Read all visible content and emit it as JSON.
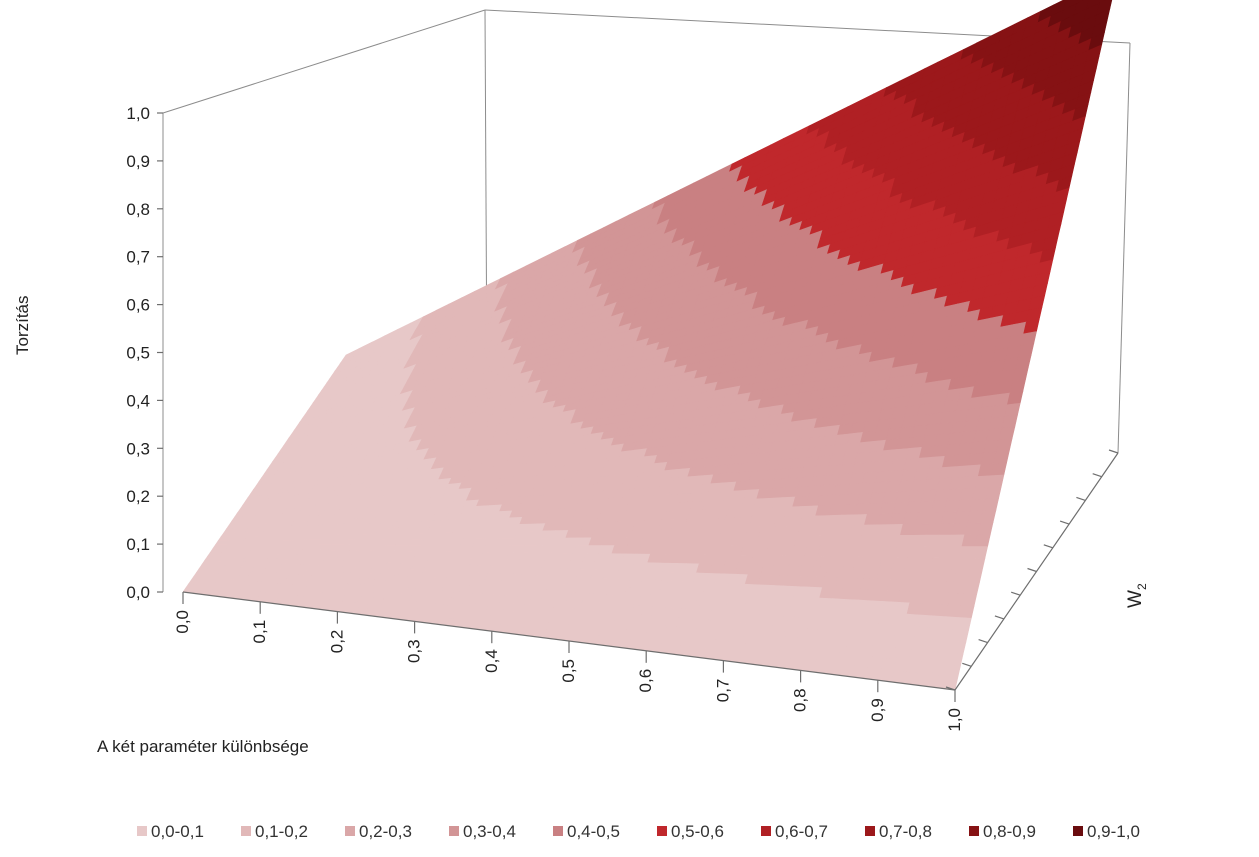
{
  "chart_data": {
    "type": "surface",
    "title": "",
    "xlabel": "A két paraméter különbsége",
    "ylabel": "W",
    "ylabel_sub": "2",
    "zlabel": "Torzítás",
    "x_ticks": [
      "0,0",
      "0,1",
      "0,2",
      "0,3",
      "0,4",
      "0,5",
      "0,6",
      "0,7",
      "0,8",
      "0,9",
      "1,0"
    ],
    "z_ticks": [
      "0,0",
      "0,1",
      "0,2",
      "0,3",
      "0,4",
      "0,5",
      "0,6",
      "0,7",
      "0,8",
      "0,9",
      "1,0"
    ],
    "xlim": [
      0,
      1
    ],
    "ylim": [
      0,
      1
    ],
    "zlim": [
      0,
      1
    ],
    "surface": "z = x * w2",
    "legend_position": "bottom",
    "bands": [
      {
        "label": "0,0-0,1",
        "color": "#e7c8c8"
      },
      {
        "label": "0,1-0,2",
        "color": "#e1b8b8"
      },
      {
        "label": "0,2-0,3",
        "color": "#daa7a8"
      },
      {
        "label": "0,3-0,4",
        "color": "#d29596"
      },
      {
        "label": "0,4-0,5",
        "color": "#c98082"
      },
      {
        "label": "0,5-0,6",
        "color": "#c0282c"
      },
      {
        "label": "0,6-0,7",
        "color": "#b02024"
      },
      {
        "label": "0,7-0,8",
        "color": "#9c181b"
      },
      {
        "label": "0,8-0,9",
        "color": "#861214"
      },
      {
        "label": "0,9-1,0",
        "color": "#6a0c0e"
      }
    ]
  }
}
